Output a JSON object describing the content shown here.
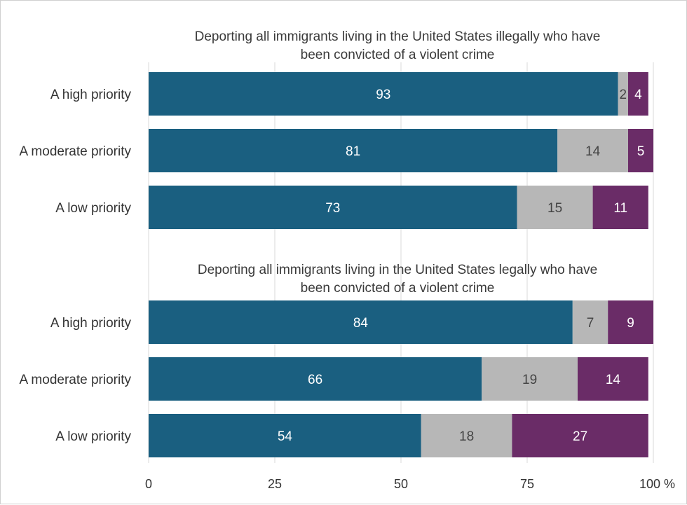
{
  "colors": {
    "series_0": "#1a5f80",
    "series_1": "#b7b7b7",
    "series_2": "#6a2c67",
    "label_on_dark": "#ffffff",
    "label_on_light": "#444444",
    "grid": "#d9d9d9"
  },
  "chart_data": {
    "type": "bar",
    "orientation": "horizontal",
    "stacked": true,
    "xlim": [
      0,
      100
    ],
    "x_ticks": [
      0,
      25,
      50,
      75,
      100
    ],
    "x_tick_labels": [
      "0",
      "25",
      "50",
      "75",
      "100 %"
    ],
    "grid": true,
    "legend": "none",
    "groups": [
      {
        "title": "Deporting all immigrants living in the United States illegally who have been convicted of a violent crime",
        "title_lines": [
          "Deporting all immigrants living in the United States illegally who have",
          "been convicted of a violent crime"
        ],
        "categories": [
          "A high priority",
          "A moderate priority",
          "A low priority"
        ],
        "series": [
          {
            "values": [
              93,
              81,
              73
            ]
          },
          {
            "values": [
              2,
              14,
              15
            ]
          },
          {
            "values": [
              4,
              5,
              11
            ]
          }
        ]
      },
      {
        "title": "Deporting all immigrants living in the United States legally who have been convicted of a violent crime",
        "title_lines": [
          "Deporting all immigrants living in the United States legally who have",
          "been convicted of a violent crime"
        ],
        "categories": [
          "A high priority",
          "A moderate priority",
          "A low priority"
        ],
        "series": [
          {
            "values": [
              84,
              66,
              54
            ]
          },
          {
            "values": [
              7,
              19,
              18
            ]
          },
          {
            "values": [
              9,
              14,
              27
            ]
          }
        ]
      }
    ]
  }
}
